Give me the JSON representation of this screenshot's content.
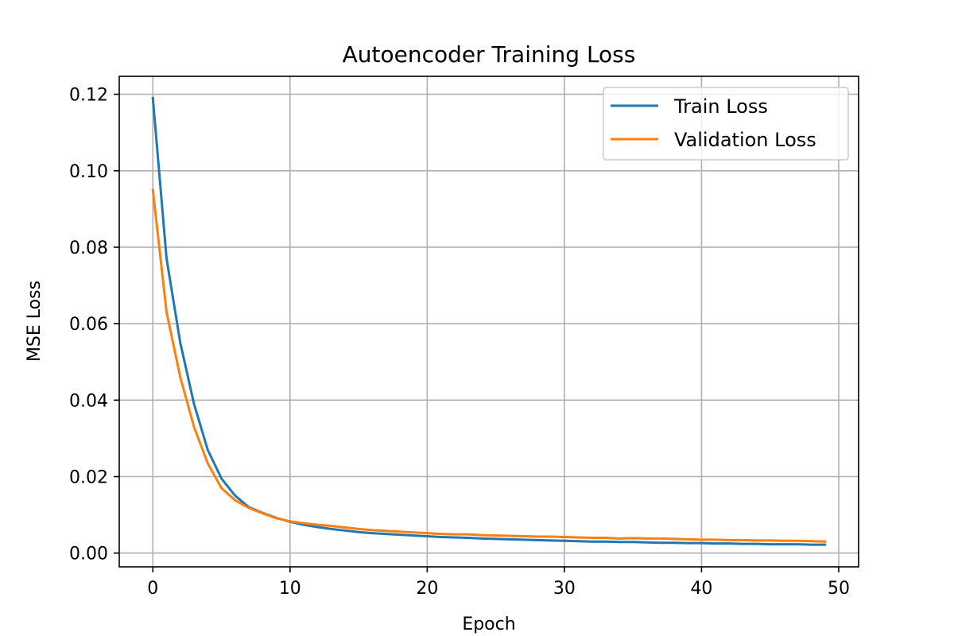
{
  "chart_data": {
    "type": "line",
    "title": "Autoencoder Training Loss",
    "xlabel": "Epoch",
    "ylabel": "MSE Loss",
    "xlim": [
      -2.45,
      51.45
    ],
    "ylim": [
      -0.0036,
      0.1247
    ],
    "xticks": [
      0,
      10,
      20,
      30,
      40,
      50
    ],
    "xtick_labels": [
      "0",
      "10",
      "20",
      "30",
      "40",
      "50"
    ],
    "yticks": [
      0.0,
      0.02,
      0.04,
      0.06,
      0.08,
      0.1,
      0.12
    ],
    "ytick_labels": [
      "0.00",
      "0.02",
      "0.04",
      "0.06",
      "0.08",
      "0.10",
      "0.12"
    ],
    "grid": true,
    "legend_position": "top-right",
    "x": [
      0,
      1,
      2,
      3,
      4,
      5,
      6,
      7,
      8,
      9,
      10,
      11,
      12,
      13,
      14,
      15,
      16,
      17,
      18,
      19,
      20,
      21,
      22,
      23,
      24,
      25,
      26,
      27,
      28,
      29,
      30,
      31,
      32,
      33,
      34,
      35,
      36,
      37,
      38,
      39,
      40,
      41,
      42,
      43,
      44,
      45,
      46,
      47,
      48,
      49
    ],
    "series": [
      {
        "name": "Train Loss",
        "color": "#1f77b4",
        "values": [
          0.119,
          0.077,
          0.055,
          0.039,
          0.027,
          0.0195,
          0.015,
          0.012,
          0.0105,
          0.0092,
          0.0082,
          0.0074,
          0.0068,
          0.0063,
          0.0059,
          0.0055,
          0.0052,
          0.005,
          0.0048,
          0.0046,
          0.0044,
          0.0042,
          0.0041,
          0.004,
          0.0038,
          0.0037,
          0.0036,
          0.0035,
          0.0034,
          0.0033,
          0.0032,
          0.0031,
          0.003,
          0.003,
          0.0029,
          0.0029,
          0.0028,
          0.0027,
          0.0027,
          0.0026,
          0.0026,
          0.0025,
          0.0025,
          0.0024,
          0.0024,
          0.0023,
          0.0023,
          0.0023,
          0.0022,
          0.0022
        ]
      },
      {
        "name": "Validation Loss",
        "color": "#ff7f0e",
        "values": [
          0.095,
          0.063,
          0.046,
          0.033,
          0.0235,
          0.017,
          0.0138,
          0.0118,
          0.0104,
          0.0091,
          0.0083,
          0.0078,
          0.0074,
          0.0071,
          0.0067,
          0.0063,
          0.006,
          0.0058,
          0.0056,
          0.0054,
          0.0052,
          0.005,
          0.0049,
          0.0049,
          0.0047,
          0.0046,
          0.0045,
          0.0044,
          0.0043,
          0.0043,
          0.0042,
          0.0041,
          0.004,
          0.004,
          0.0038,
          0.0039,
          0.0038,
          0.0038,
          0.0037,
          0.0036,
          0.0035,
          0.0035,
          0.0034,
          0.0034,
          0.0033,
          0.0033,
          0.0032,
          0.0032,
          0.0031,
          0.003
        ]
      }
    ]
  }
}
